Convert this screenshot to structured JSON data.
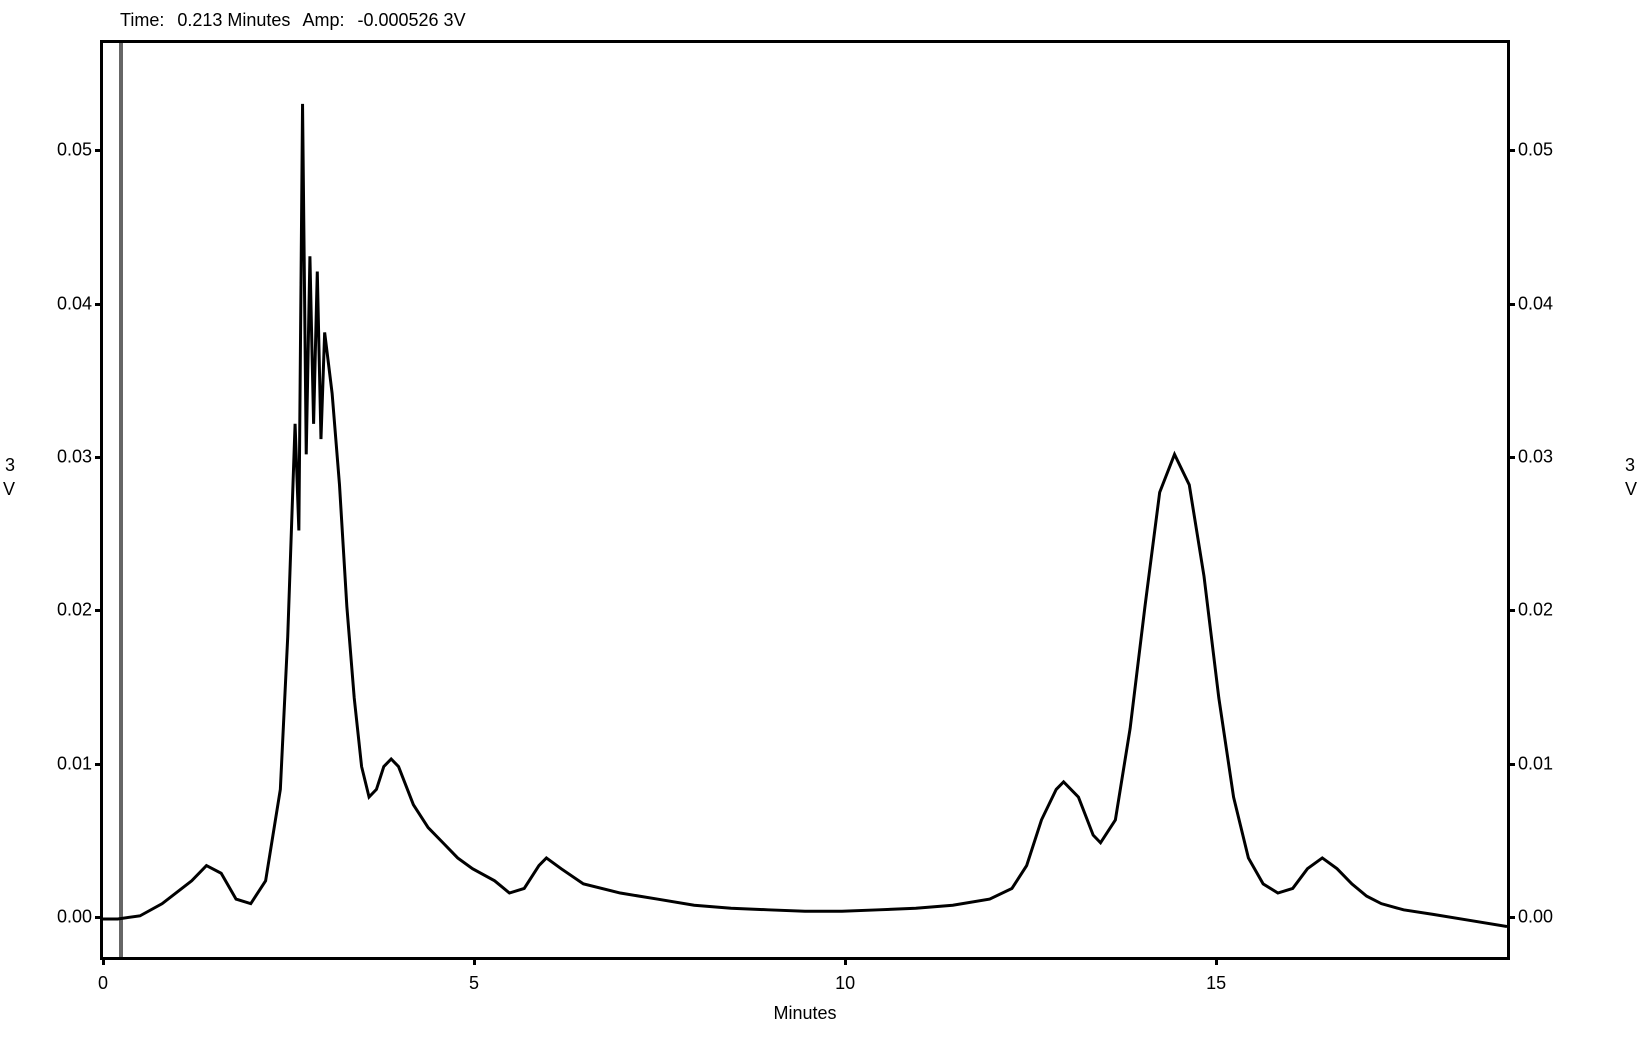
{
  "header": {
    "time_label": "Time:",
    "time_value": "0.213 Minutes",
    "amp_label": "Amp:",
    "amp_value": "-0.000526 3V"
  },
  "chart": {
    "type": "line",
    "x_label": "Minutes",
    "left_axis_label_1": "3",
    "left_axis_label_2": "V",
    "right_axis_label_1": "3",
    "right_axis_label_2": "V",
    "xlim": [
      0,
      19
    ],
    "ylim": [
      -0.003,
      0.057
    ],
    "x_ticks": [
      0,
      5,
      10,
      15
    ],
    "y_ticks": [
      0.0,
      0.01,
      0.02,
      0.03,
      0.04,
      0.05
    ],
    "y_tick_labels": [
      "0.00",
      "0.01",
      "0.02",
      "0.03",
      "0.04",
      "0.05"
    ],
    "line_color": "#000000",
    "line_width": 3,
    "background_color": "#ffffff",
    "border_color": "#000000",
    "cursor_x": 0.213,
    "cursor_color": "#666666",
    "data": [
      [
        0.0,
        -0.0005
      ],
      [
        0.2,
        -0.0005
      ],
      [
        0.5,
        -0.0003
      ],
      [
        0.8,
        0.0005
      ],
      [
        1.2,
        0.002
      ],
      [
        1.4,
        0.003
      ],
      [
        1.6,
        0.0025
      ],
      [
        1.8,
        0.0008
      ],
      [
        2.0,
        0.0005
      ],
      [
        2.2,
        0.002
      ],
      [
        2.4,
        0.008
      ],
      [
        2.5,
        0.018
      ],
      [
        2.6,
        0.032
      ],
      [
        2.65,
        0.025
      ],
      [
        2.7,
        0.053
      ],
      [
        2.75,
        0.03
      ],
      [
        2.8,
        0.043
      ],
      [
        2.85,
        0.032
      ],
      [
        2.9,
        0.042
      ],
      [
        2.95,
        0.031
      ],
      [
        3.0,
        0.038
      ],
      [
        3.1,
        0.034
      ],
      [
        3.2,
        0.028
      ],
      [
        3.3,
        0.02
      ],
      [
        3.4,
        0.014
      ],
      [
        3.5,
        0.0095
      ],
      [
        3.6,
        0.0075
      ],
      [
        3.7,
        0.008
      ],
      [
        3.8,
        0.0095
      ],
      [
        3.9,
        0.01
      ],
      [
        4.0,
        0.0095
      ],
      [
        4.2,
        0.007
      ],
      [
        4.4,
        0.0055
      ],
      [
        4.6,
        0.0045
      ],
      [
        4.8,
        0.0035
      ],
      [
        5.0,
        0.0028
      ],
      [
        5.3,
        0.002
      ],
      [
        5.5,
        0.0012
      ],
      [
        5.7,
        0.0015
      ],
      [
        5.9,
        0.003
      ],
      [
        6.0,
        0.0035
      ],
      [
        6.2,
        0.0028
      ],
      [
        6.5,
        0.0018
      ],
      [
        7.0,
        0.0012
      ],
      [
        7.5,
        0.0008
      ],
      [
        8.0,
        0.0004
      ],
      [
        8.5,
        0.0002
      ],
      [
        9.0,
        0.0001
      ],
      [
        9.5,
        0.0
      ],
      [
        10.0,
        0.0
      ],
      [
        10.5,
        0.0001
      ],
      [
        11.0,
        0.0002
      ],
      [
        11.5,
        0.0004
      ],
      [
        12.0,
        0.0008
      ],
      [
        12.3,
        0.0015
      ],
      [
        12.5,
        0.003
      ],
      [
        12.7,
        0.006
      ],
      [
        12.9,
        0.008
      ],
      [
        13.0,
        0.0085
      ],
      [
        13.2,
        0.0075
      ],
      [
        13.4,
        0.005
      ],
      [
        13.5,
        0.0045
      ],
      [
        13.7,
        0.006
      ],
      [
        13.9,
        0.012
      ],
      [
        14.1,
        0.02
      ],
      [
        14.3,
        0.0275
      ],
      [
        14.5,
        0.03
      ],
      [
        14.7,
        0.028
      ],
      [
        14.9,
        0.022
      ],
      [
        15.1,
        0.014
      ],
      [
        15.3,
        0.0075
      ],
      [
        15.5,
        0.0035
      ],
      [
        15.7,
        0.0018
      ],
      [
        15.9,
        0.0012
      ],
      [
        16.1,
        0.0015
      ],
      [
        16.3,
        0.0028
      ],
      [
        16.5,
        0.0035
      ],
      [
        16.7,
        0.0028
      ],
      [
        16.9,
        0.0018
      ],
      [
        17.1,
        0.001
      ],
      [
        17.3,
        0.0005
      ],
      [
        17.6,
        0.0001
      ],
      [
        18.0,
        -0.0002
      ],
      [
        18.5,
        -0.0006
      ],
      [
        19.0,
        -0.001
      ]
    ]
  }
}
